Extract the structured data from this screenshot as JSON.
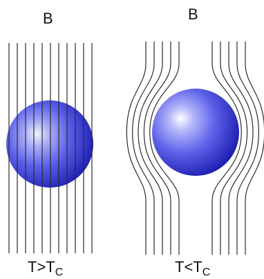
{
  "left_panel": {
    "field_label": "B",
    "temperature_label": "T>T",
    "temperature_subscript": "C"
  },
  "right_panel": {
    "field_label": "B",
    "temperature_label": "T<T",
    "temperature_subscript": "C"
  },
  "colors": {
    "field_lines": "#2a2a2a",
    "sphere_highlight": "#f2f4ff",
    "sphere_mid": "#6b6ff0",
    "sphere_dark": "#1e1eb4"
  }
}
